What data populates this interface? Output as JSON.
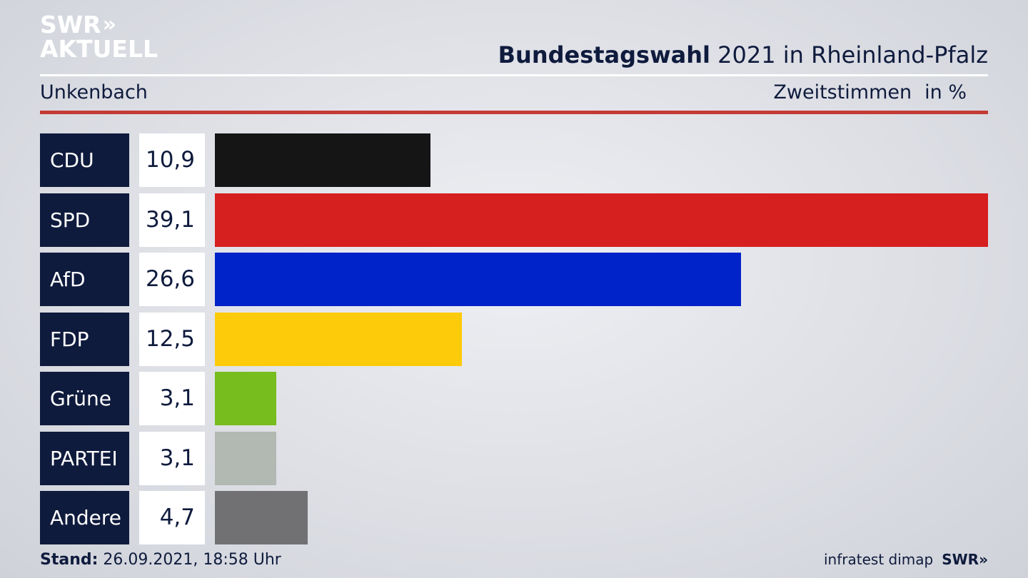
{
  "logo": {
    "line1": "SWR",
    "line2": "AKTUELL",
    "arrows": "»"
  },
  "header": {
    "title_bold": "Bundestagswahl",
    "title_rest": " 2021 in Rheinland-Pfalz",
    "location": "Unkenbach",
    "measure": "Zweitstimmen",
    "unit": "in %"
  },
  "chart_data": {
    "type": "bar",
    "orientation": "horizontal",
    "categories": [
      "CDU",
      "SPD",
      "AfD",
      "FDP",
      "Grüne",
      "PARTEI",
      "Andere"
    ],
    "values": [
      10.9,
      39.1,
      26.6,
      12.5,
      3.1,
      3.1,
      4.7
    ],
    "value_labels": [
      "10,9",
      "39,1",
      "26,6",
      "12,5",
      "3,1",
      "3,1",
      "4,7"
    ],
    "colors": [
      "#151515",
      "#d61f1f",
      "#0022c9",
      "#fecb0a",
      "#76bd1d",
      "#b1b9b2",
      "#717174"
    ],
    "xlim": [
      0,
      39.1
    ]
  },
  "footer": {
    "stand_label": "Stand:",
    "stand_value": " 26.09.2021, 18:58 Uhr",
    "source": "infratest dimap",
    "brand": "SWR»"
  },
  "colors": {
    "navy": "#0f1b3d",
    "accent_red": "#c43a35"
  }
}
